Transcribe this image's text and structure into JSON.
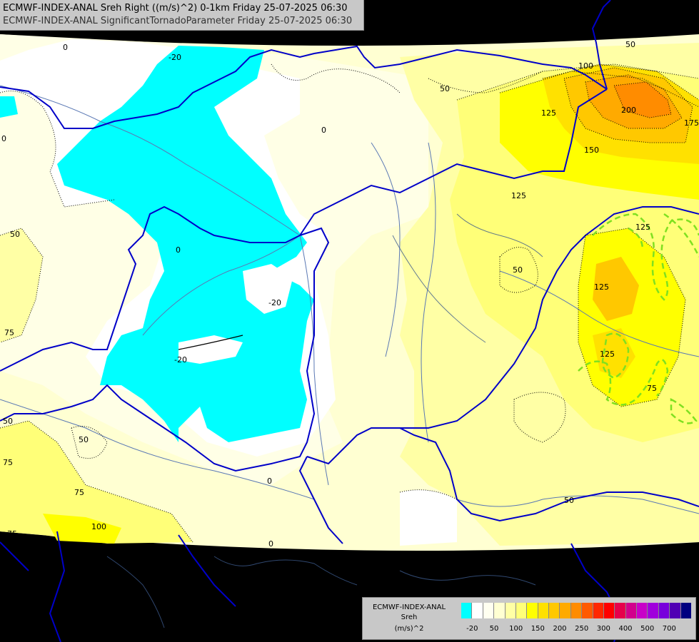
{
  "header": {
    "line1": "ECMWF-INDEX-ANAL Sreh Right ((m/s)^2) 0-1km Friday 25-07-2025 06:30",
    "line2": "ECMWF-INDEX-ANAL SignificantTornadoParameter Friday 25-07-2025 06:30"
  },
  "legend": {
    "label1": "ECMWF-INDEX-ANAL",
    "label2": "Sreh",
    "label3": "(m/s)^2",
    "colors": [
      "#00ffff",
      "#ffffff",
      "#fffff0",
      "#ffffd2",
      "#ffffa5",
      "#ffff78",
      "#ffff00",
      "#ffe100",
      "#ffc800",
      "#ffaa00",
      "#ff8c00",
      "#ff5a00",
      "#ff2800",
      "#ff0000",
      "#e6004b",
      "#d2008c",
      "#c800c8",
      "#a000dc",
      "#7800dc",
      "#5000b4",
      "#000080"
    ],
    "ticks": [
      "-20",
      "50",
      "100",
      "150",
      "200",
      "250",
      "300",
      "400",
      "500",
      "700"
    ]
  },
  "map": {
    "contour_labels": [
      {
        "text": "0"
      },
      {
        "text": "-20"
      },
      {
        "text": "50"
      },
      {
        "text": "50"
      },
      {
        "text": "100"
      },
      {
        "text": "125"
      },
      {
        "text": "200"
      },
      {
        "text": "175"
      },
      {
        "text": "150"
      },
      {
        "text": "0"
      },
      {
        "text": "0"
      },
      {
        "text": "125"
      },
      {
        "text": "50"
      },
      {
        "text": "125"
      },
      {
        "text": "50"
      },
      {
        "text": "125"
      },
      {
        "text": "-20"
      },
      {
        "text": "-20"
      },
      {
        "text": "0"
      },
      {
        "text": "75"
      },
      {
        "text": "125"
      },
      {
        "text": "75"
      },
      {
        "text": "50"
      },
      {
        "text": "50"
      },
      {
        "text": "75"
      },
      {
        "text": "0"
      },
      {
        "text": "50"
      },
      {
        "text": "75"
      },
      {
        "text": "100"
      },
      {
        "text": "75"
      },
      {
        "text": "0"
      }
    ]
  }
}
